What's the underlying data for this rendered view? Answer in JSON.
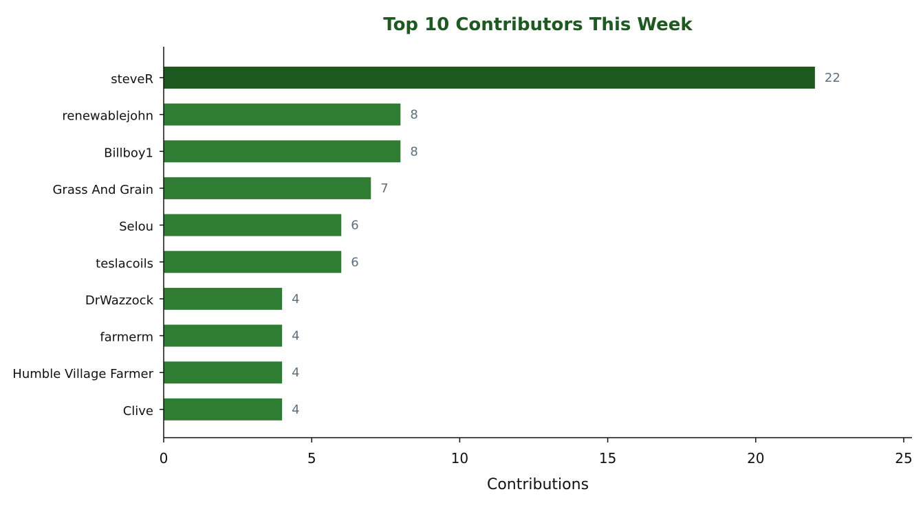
{
  "chart_data": {
    "type": "bar",
    "orientation": "horizontal",
    "title": "Top 10 Contributors This Week",
    "xlabel": "Contributions",
    "ylabel": "",
    "categories": [
      "steveR",
      "renewablejohn",
      "Billboy1",
      "Grass And Grain",
      "Selou",
      "teslacoils",
      "DrWazzock",
      "farmerm",
      "Humble Village Farmer",
      "Clive"
    ],
    "values": [
      22,
      8,
      8,
      7,
      6,
      6,
      4,
      4,
      4,
      4
    ],
    "xlim": [
      0,
      25
    ],
    "xticks": [
      0,
      5,
      10,
      15,
      20,
      25
    ],
    "grid": false,
    "legend": "none"
  },
  "colors": {
    "title": "#1d5a1f",
    "top_bar": "#1d5a1f",
    "bar": "#2e7d32",
    "value_label": "#5a6f7e",
    "axis": "#111111"
  }
}
